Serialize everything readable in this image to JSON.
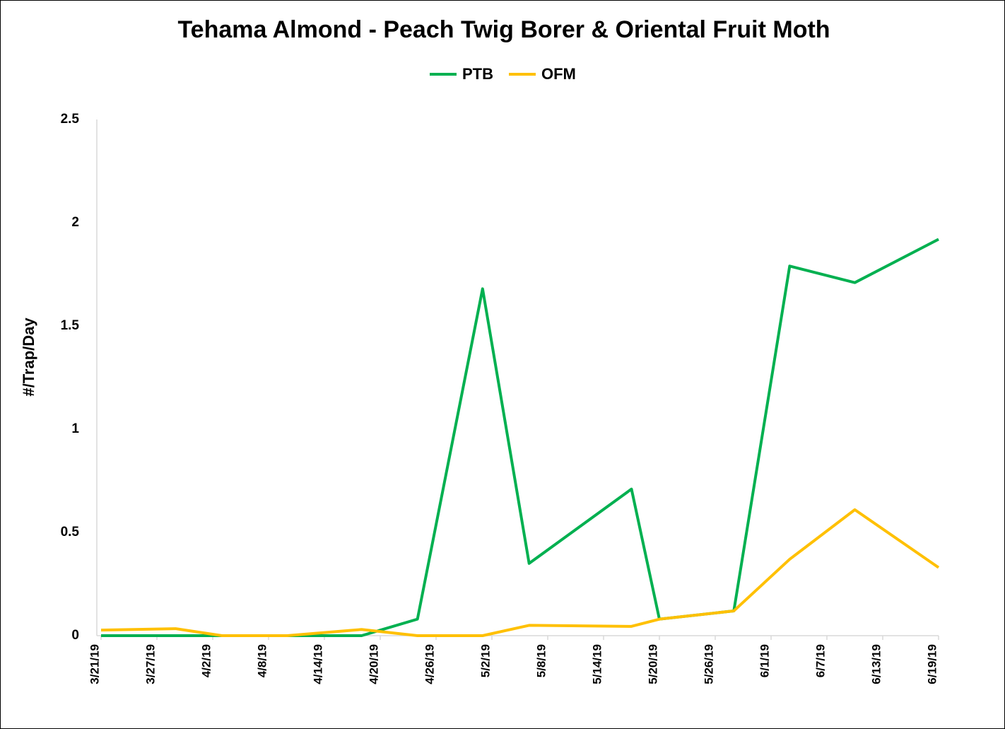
{
  "chart_data": {
    "type": "line",
    "title": "Tehama Almond - Peach Twig Borer & Oriental Fruit Moth",
    "y_label": "#/Trap/Day",
    "x": [
      "3/21/19",
      "3/29/19",
      "4/3/19",
      "4/10/19",
      "4/18/19",
      "4/24/19",
      "5/1/19",
      "5/6/19",
      "5/17/19",
      "5/20/19",
      "5/28/19",
      "6/3/19",
      "6/10/19",
      "6/19/19"
    ],
    "series": [
      {
        "name": "PTB",
        "color": "#00b050",
        "values": [
          0,
          0,
          0,
          0,
          0,
          0.08,
          1.68,
          0.35,
          0.71,
          0.08,
          0.12,
          1.79,
          1.71,
          1.92
        ]
      },
      {
        "name": "OFM",
        "color": "#ffc000",
        "values": [
          0.027,
          0.034,
          0,
          0,
          0.03,
          0,
          0,
          0.05,
          0.045,
          0.08,
          0.12,
          0.37,
          0.61,
          0.33
        ]
      }
    ],
    "xlim": [
      "3/21/19",
      "6/19/19"
    ],
    "xticks": [
      "3/21/19",
      "3/27/19",
      "4/2/19",
      "4/8/19",
      "4/14/19",
      "4/20/19",
      "4/26/19",
      "5/2/19",
      "5/8/19",
      "5/14/19",
      "5/20/19",
      "5/26/19",
      "6/1/19",
      "6/7/19",
      "6/13/19",
      "6/19/19"
    ],
    "ylim": [
      0,
      2.5
    ],
    "yticks": [
      0,
      0.5,
      1,
      1.5,
      2,
      2.5
    ],
    "legend": "top",
    "grid": false
  }
}
